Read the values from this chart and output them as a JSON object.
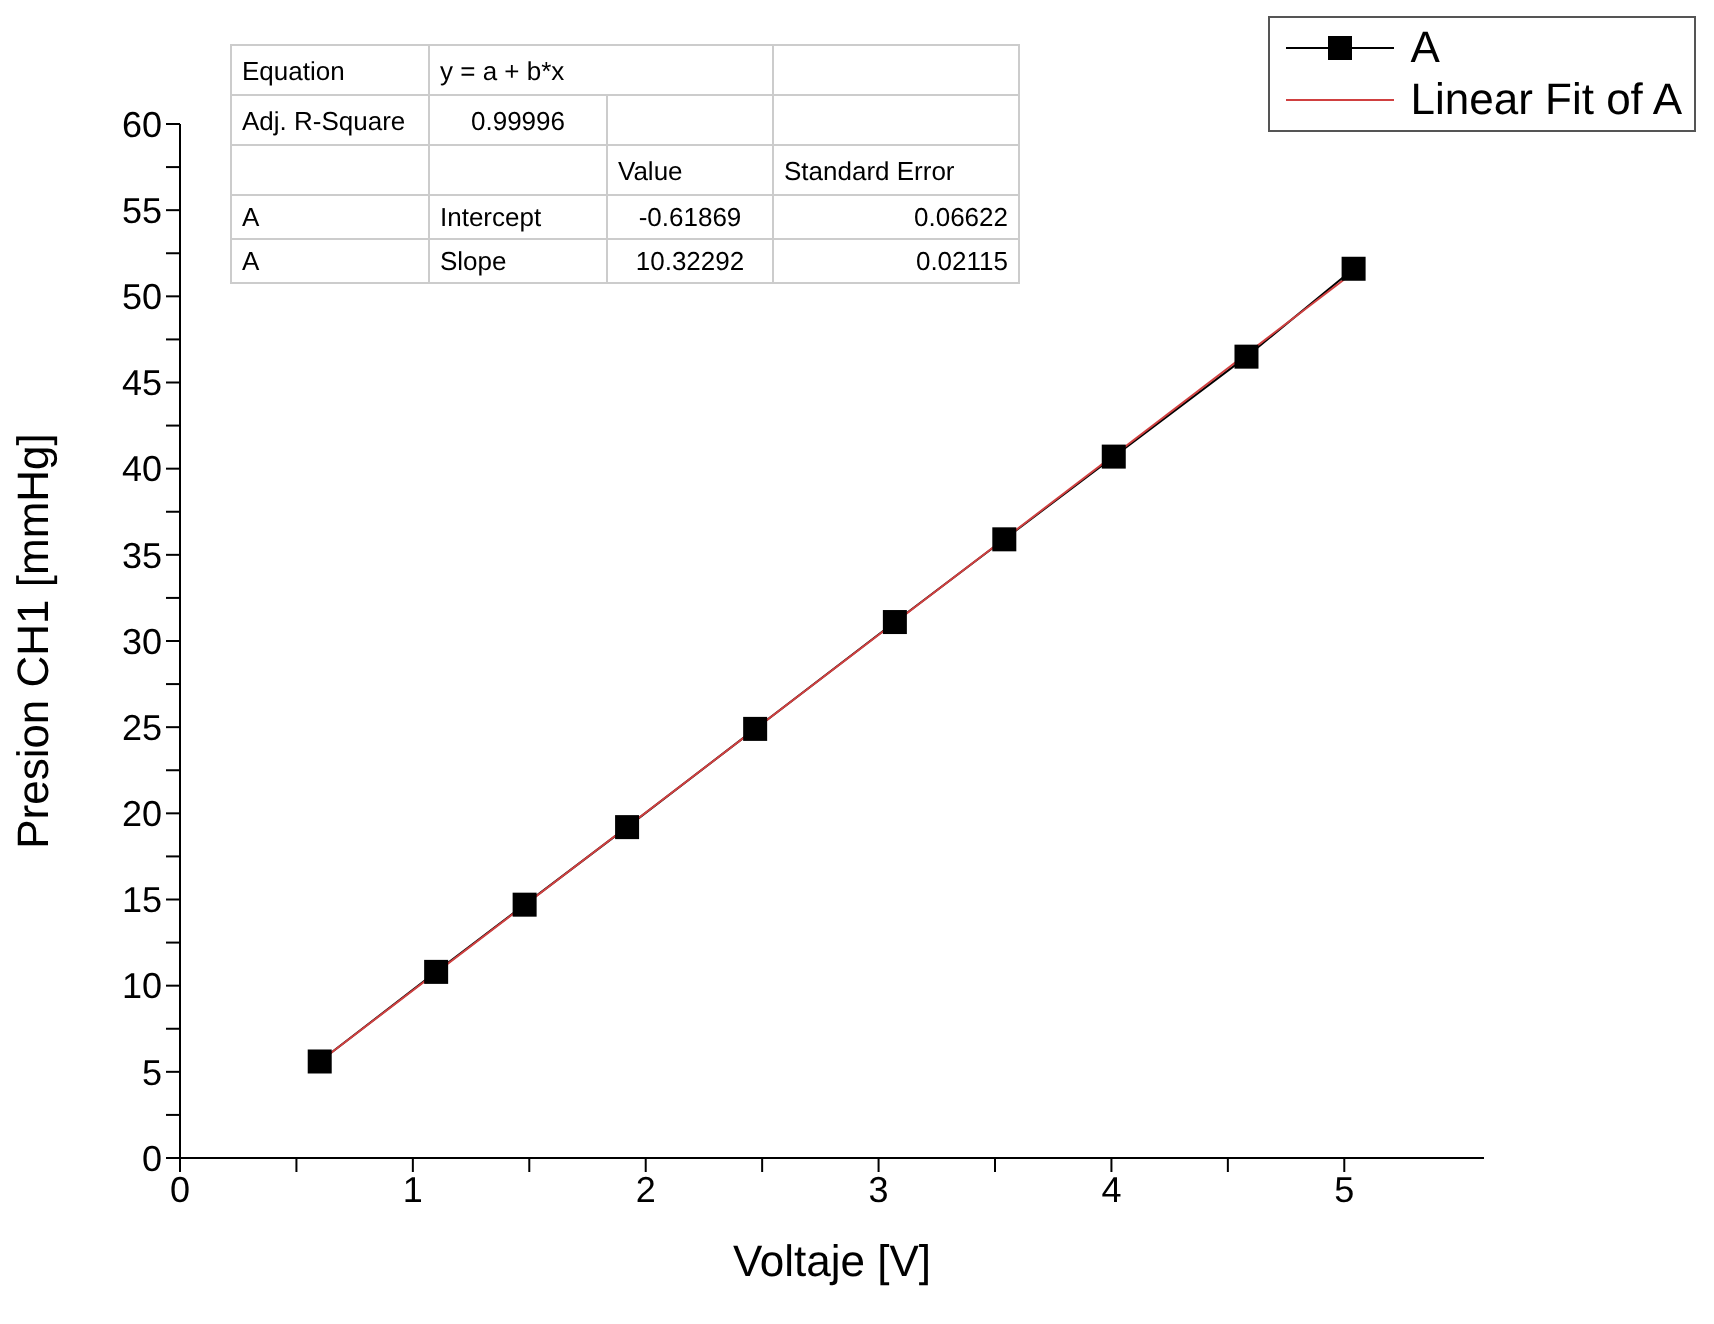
{
  "chart_data": {
    "type": "line",
    "xlabel": "Voltaje [V]",
    "ylabel": "Presion CH1 [mmHg]",
    "xlim": [
      0,
      5.6
    ],
    "ylim": [
      0,
      60
    ],
    "xticks": [
      0,
      {
        "value": 0.5,
        "label": null
      },
      1,
      {
        "value": 1.5,
        "label": null
      },
      2,
      {
        "value": 2.5,
        "label": null
      },
      3,
      {
        "value": 3.5,
        "label": null
      },
      4,
      {
        "value": 4.5,
        "label": null
      },
      5
    ],
    "yticks": [
      0,
      {
        "value": 2.5,
        "label": null
      },
      5,
      {
        "value": 7.5,
        "label": null
      },
      10,
      {
        "value": 12.5,
        "label": null
      },
      15,
      {
        "value": 17.5,
        "label": null
      },
      20,
      {
        "value": 22.5,
        "label": null
      },
      25,
      {
        "value": 27.5,
        "label": null
      },
      30,
      {
        "value": 32.5,
        "label": null
      },
      35,
      {
        "value": 37.5,
        "label": null
      },
      40,
      {
        "value": 42.5,
        "label": null
      },
      45,
      {
        "value": 47.5,
        "label": null
      },
      50,
      {
        "value": 52.5,
        "label": null
      },
      55,
      {
        "value": 57.5,
        "label": null
      },
      60
    ],
    "series": [
      {
        "name": "A",
        "color": "#000000",
        "marker": "square",
        "x": [
          0.6,
          1.1,
          1.48,
          1.92,
          2.47,
          3.07,
          3.54,
          4.01,
          4.58,
          5.04
        ],
        "values": [
          5.6,
          10.8,
          14.7,
          19.2,
          24.9,
          31.1,
          35.9,
          40.7,
          46.5,
          51.6
        ]
      },
      {
        "name": "Linear Fit of A",
        "color": "#d04040",
        "marker": "none",
        "x": [
          0.6,
          5.04
        ],
        "values": [
          5.6,
          51.4
        ]
      }
    ],
    "annotations": [
      "Equation",
      "y = a + b*x",
      "Adj. R-Square",
      "0.99996",
      "Value",
      "Standard Error",
      "A",
      "Intercept",
      "-0.61869",
      "0.06622",
      "A",
      "Slope",
      "10.32292",
      "0.02115"
    ],
    "legend": "top right"
  }
}
